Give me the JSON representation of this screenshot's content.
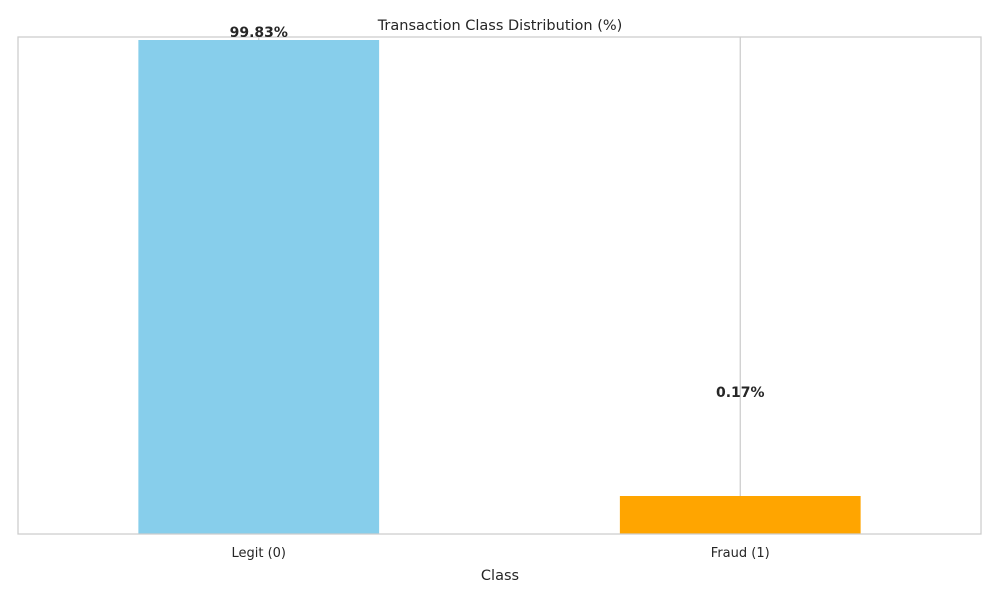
{
  "chart_data": {
    "type": "bar",
    "title": "Transaction Class Distribution (%)",
    "xlabel": "Class",
    "ylabel": "",
    "categories": [
      "Legit (0)",
      "Fraud (1)"
    ],
    "values": [
      99.83,
      0.17
    ],
    "data_labels": [
      "99.83%",
      "0.17%"
    ],
    "colors": [
      "#87ceeb",
      "#ffa500"
    ],
    "grid": "x-only",
    "legend": "none"
  }
}
